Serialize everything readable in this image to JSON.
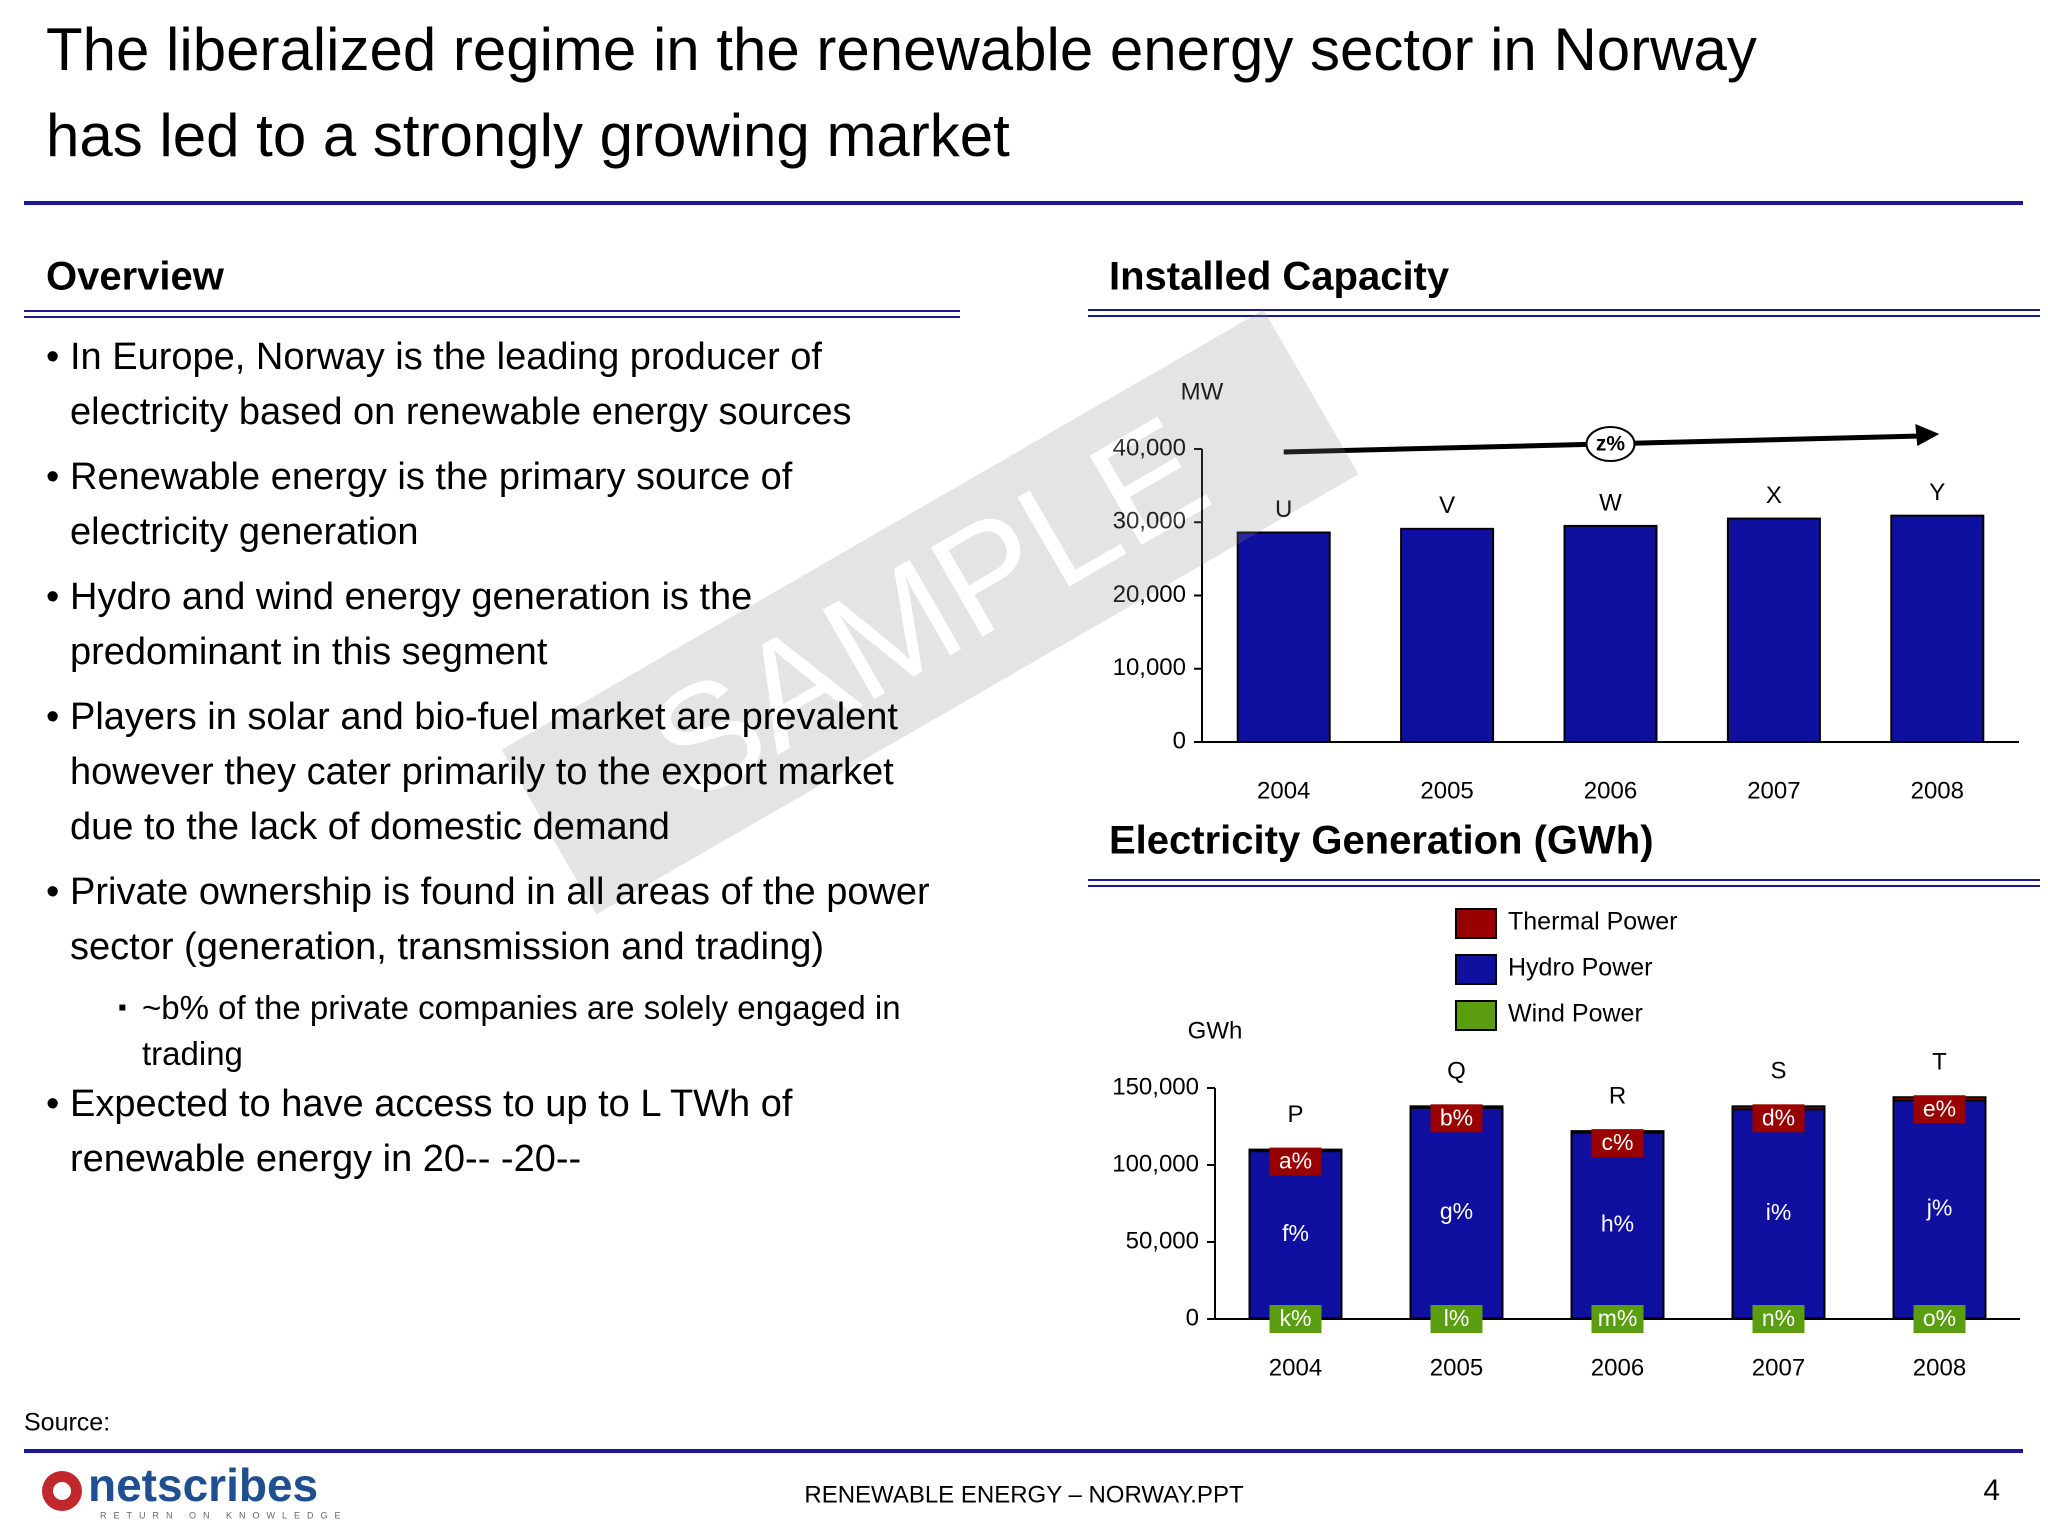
{
  "title_lines": [
    "The liberalized regime in the renewable energy sector in Norway",
    "has led to a strongly growing market"
  ],
  "overview": {
    "heading": "Overview",
    "bullets": [
      {
        "text": "In Europe, Norway is the leading producer of electricity based on renewable energy sources"
      },
      {
        "text": "Renewable energy is the primary source of electricity generation"
      },
      {
        "text": "Hydro and wind energy generation is the predominant in this segment"
      },
      {
        "text": "Players in solar and bio-fuel market are prevalent however they cater primarily to the export market due to the lack of domestic demand"
      },
      {
        "text": "Private ownership is found in all areas of the power sector (generation, transmission and trading)",
        "sub": [
          "~b% of the private companies are solely engaged in trading"
        ]
      },
      {
        "text": "Expected to have access to up to L TWh of renewable energy in 20-- -20--"
      }
    ]
  },
  "chart_data": [
    {
      "type": "bar",
      "title": "Installed Capacity",
      "y_label": "MW",
      "categories": [
        "2004",
        "2005",
        "2006",
        "2007",
        "2008"
      ],
      "values": [
        28600,
        29100,
        29500,
        30500,
        30900
      ],
      "color": "#1010a0",
      "bar_labels": [
        "U",
        "V",
        "W",
        "X",
        "Y"
      ],
      "trend_label": "z%",
      "ylim": [
        0,
        40000
      ],
      "yticks": [
        0,
        {
          "value": 10000,
          "label": "10,000"
        },
        {
          "value": 20000,
          "label": "20,000"
        },
        {
          "value": 30000,
          "label": "30,000"
        },
        {
          "value": 40000,
          "label": "40,000"
        }
      ]
    },
    {
      "type": "stacked_bar",
      "title": "Electricity Generation (GWh)",
      "y_label": "GWh",
      "categories": [
        "2004",
        "2005",
        "2006",
        "2007",
        "2008"
      ],
      "series": [
        {
          "name": "Thermal Power",
          "color": "#990000",
          "values": [
            1000,
            1000,
            1000,
            2000,
            2000
          ],
          "labels": [
            "a%",
            "b%",
            "c%",
            "d%",
            "e%"
          ]
        },
        {
          "name": "Hydro Power",
          "color": "#1010a0",
          "values": [
            108500,
            136600,
            120500,
            135600,
            141500
          ],
          "labels": [
            "f%",
            "g%",
            "h%",
            "i%",
            "j%"
          ]
        },
        {
          "name": "Wind Power",
          "color": "#5a9e10",
          "values": [
            500,
            500,
            500,
            500,
            500
          ],
          "labels": [
            "k%",
            "l%",
            "m%",
            "n%",
            "o%"
          ]
        }
      ],
      "total_labels": [
        "P",
        "Q",
        "R",
        "S",
        "T"
      ],
      "ylim": [
        0,
        150000
      ],
      "yticks": [
        0,
        {
          "value": 50000,
          "label": "50,000"
        },
        {
          "value": 100000,
          "label": "100,000"
        },
        {
          "value": 150000,
          "label": "150,000"
        }
      ]
    }
  ],
  "watermark": "SAMPLE",
  "source": "Source:",
  "footer": {
    "logo": "netscribes",
    "tagline": "RETURN ON KNOWLEDGE",
    "center": "RENEWABLE ENERGY – NORWAY.PPT",
    "page": "4"
  }
}
